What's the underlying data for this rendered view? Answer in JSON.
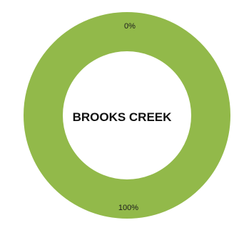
{
  "chart_data": {
    "type": "pie",
    "variant": "donut",
    "center_label": "BROOKS CREEK",
    "slices": [
      {
        "label": "0%",
        "value": 0,
        "color": "#92b94a"
      },
      {
        "label": "100%",
        "value": 100,
        "color": "#92b94a"
      }
    ],
    "colors": {
      "ring": "#92b94a",
      "background": "#ffffff",
      "center_text": "#111111",
      "slice_text": "#1a1a1a"
    }
  }
}
